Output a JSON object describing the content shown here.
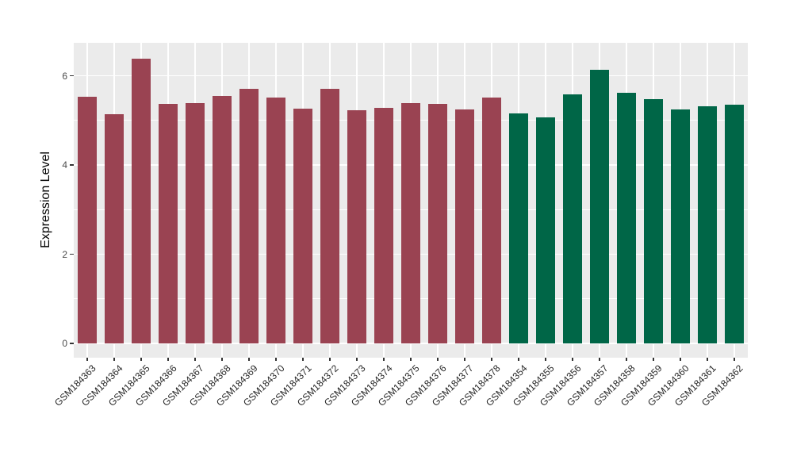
{
  "chart_data": {
    "type": "bar",
    "title": "",
    "xlabel": "",
    "ylabel": "Expression Level",
    "ylim": [
      0,
      6.73
    ],
    "yticks": [
      0,
      2,
      4,
      6
    ],
    "yticks_minor": [
      1,
      3,
      5
    ],
    "legend_position": "none",
    "panel_background": "#EBEBEB",
    "gridline_color": "#FFFFFF",
    "axis_text_color": "#333333",
    "categories": [
      "GSM184363",
      "GSM184364",
      "GSM184365",
      "GSM184366",
      "GSM184367",
      "GSM184368",
      "GSM184369",
      "GSM184370",
      "GSM184371",
      "GSM184372",
      "GSM184373",
      "GSM184374",
      "GSM184375",
      "GSM184376",
      "GSM184377",
      "GSM184378",
      "GSM184354",
      "GSM184355",
      "GSM184356",
      "GSM184357",
      "GSM184358",
      "GSM184359",
      "GSM184360",
      "GSM184361",
      "GSM184362"
    ],
    "values": [
      5.53,
      5.13,
      6.38,
      5.37,
      5.38,
      5.55,
      5.71,
      5.51,
      5.26,
      5.71,
      5.23,
      5.28,
      5.39,
      5.37,
      5.24,
      5.51,
      5.15,
      5.06,
      5.58,
      6.13,
      5.62,
      5.47,
      5.24,
      5.32,
      5.35
    ],
    "groups": [
      {
        "name": "GSM184363-GSM184378",
        "color": "#9A4352",
        "start": 0,
        "count": 16
      },
      {
        "name": "GSM184354-GSM184362",
        "color": "#006647",
        "start": 16,
        "count": 9
      }
    ]
  }
}
